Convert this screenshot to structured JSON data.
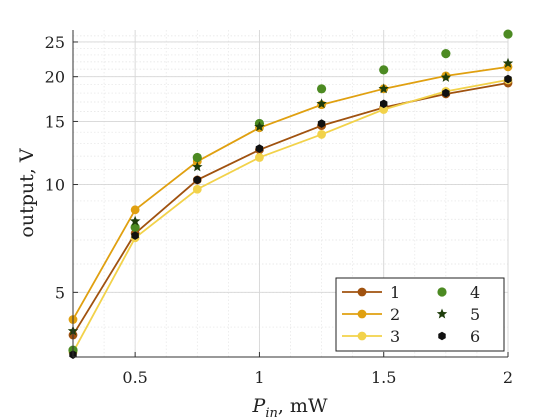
{
  "chart_data": {
    "type": "line",
    "title": "",
    "xlabel_base": "P",
    "xlabel_sub": "in",
    "xlabel_suffix": ", mW",
    "ylabel": "output, V",
    "x_scale": "linear",
    "y_scale": "log",
    "xlim": [
      0.25,
      2.0
    ],
    "ylim": [
      3.3,
      27
    ],
    "xticks": [
      0.5,
      1,
      1.5,
      2
    ],
    "xtick_labels": [
      "0.5",
      "1",
      "1.5",
      "2"
    ],
    "yticks": [
      5,
      10,
      15,
      20,
      25
    ],
    "ytick_labels": [
      "5",
      "10",
      "15",
      "20",
      "25"
    ],
    "grid": true,
    "legend_position": "bottom-right",
    "x": [
      0.25,
      0.5,
      0.75,
      1.0,
      1.25,
      1.5,
      1.75,
      2.0
    ],
    "series": [
      {
        "name": "1",
        "style": "line-circle",
        "color": "#a0520f",
        "values": [
          3.8,
          7.3,
          10.3,
          12.5,
          14.6,
          16.4,
          17.9,
          19.2
        ]
      },
      {
        "name": "2",
        "style": "line-circle",
        "color": "#e0a010",
        "values": [
          4.2,
          8.5,
          11.6,
          14.4,
          16.7,
          18.5,
          20.1,
          21.3
        ]
      },
      {
        "name": "3",
        "style": "line-circle",
        "color": "#f2d24a",
        "values": [
          3.4,
          7.1,
          9.7,
          11.9,
          13.8,
          16.2,
          18.2,
          19.6
        ]
      },
      {
        "name": "4",
        "style": "marker-circle",
        "color": "#4c8a22",
        "values": [
          3.45,
          7.6,
          11.9,
          14.8,
          18.5,
          20.9,
          23.2,
          26.3
        ]
      },
      {
        "name": "5",
        "style": "marker-star",
        "color": "#1f3d0c",
        "values": [
          3.9,
          7.9,
          11.2,
          14.5,
          16.8,
          18.5,
          19.9,
          21.8
        ]
      },
      {
        "name": "6",
        "style": "marker-hexagon",
        "color": "#111111",
        "values": [
          3.35,
          7.2,
          10.3,
          12.6,
          14.8,
          16.8,
          18.0,
          19.7
        ]
      }
    ]
  }
}
